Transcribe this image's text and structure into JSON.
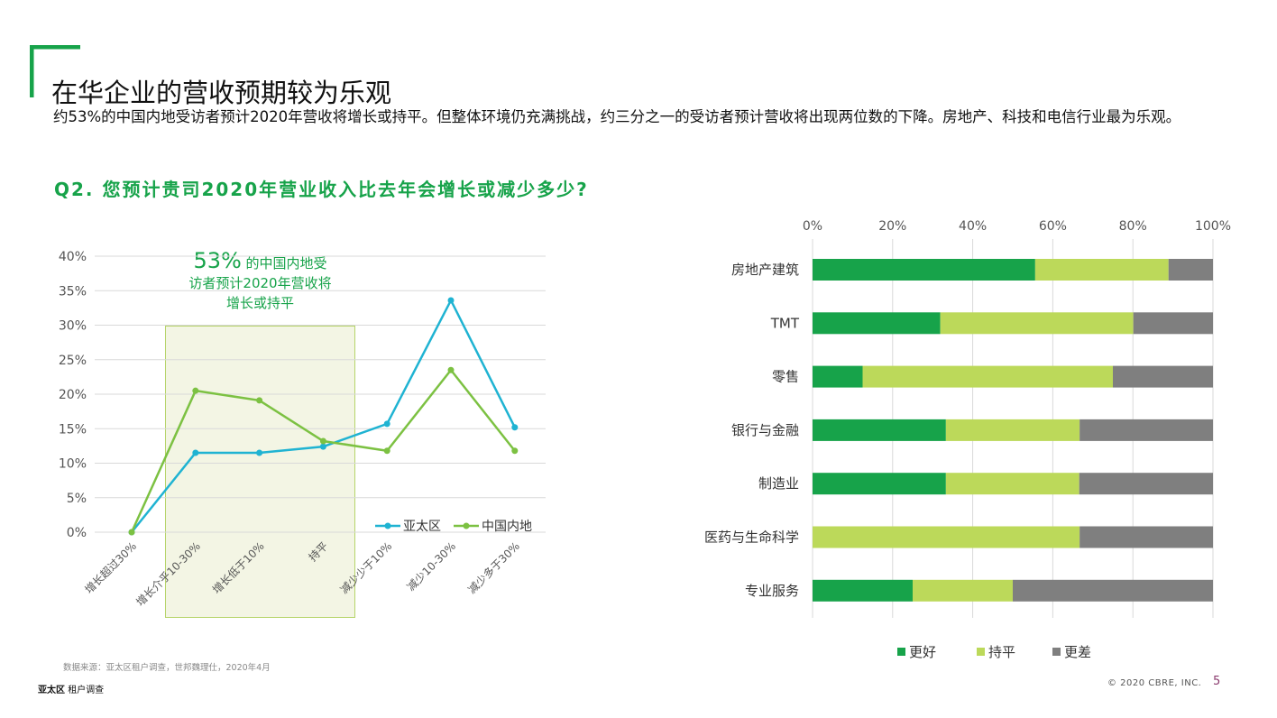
{
  "title": "在华企业的营收预期较为乐观",
  "subtitle": "约53%的中国内地受访者预计2020年营收将增长或持平。但整体环境仍充满挑战，约三分之一的受访者预计营收将出现两位数的下降。房地产、科技和电信行业最为乐观。",
  "question": "Q2. 您预计贵司2020年营业收入比去年会增长或减少多少?",
  "callout": {
    "big": "53%",
    "line1": " 的中国内地受",
    "line2": "访者预计2020年营收将",
    "line3": "增长或持平"
  },
  "source": "数据来源：亚太区租户调查，世邦魏理仕，2020年4月",
  "footer": {
    "brand": "亚太区",
    "report": "租户调查"
  },
  "copyright": "© 2020 CBRE, INC.",
  "page_number": "5",
  "colors": {
    "asia": "#1fb3d2",
    "china": "#7cc142",
    "better": "#17a34a",
    "flat": "#bcd95a",
    "worse": "#7f7f7f",
    "accent": "#17a34a"
  },
  "chart_data": [
    {
      "type": "line",
      "categories": [
        "增长超过30%",
        "增长介乎10-30%",
        "增长低于10%",
        "持平",
        "减少少于10%",
        "减少10-30%",
        "减少多于30%"
      ],
      "y_ticks": [
        "0%",
        "5%",
        "10%",
        "15%",
        "20%",
        "25%",
        "30%",
        "35%",
        "40%"
      ],
      "ylim": [
        0,
        40
      ],
      "series": [
        {
          "name": "亚太区",
          "values": [
            0,
            11.5,
            11.5,
            12.4,
            15.7,
            33.6,
            15.2
          ]
        },
        {
          "name": "中国内地",
          "values": [
            0,
            20.5,
            19.1,
            13.2,
            11.8,
            23.5,
            11.8
          ]
        }
      ],
      "legend": "bottom-right",
      "grid": true
    },
    {
      "type": "bar",
      "orientation": "horizontal",
      "stacked": true,
      "categories": [
        "房地产建筑",
        "TMT",
        "零售",
        "银行与金融",
        "制造业",
        "医药与生命科学",
        "专业服务"
      ],
      "x_ticks": [
        "0%",
        "20%",
        "40%",
        "60%",
        "80%",
        "100%"
      ],
      "xlim": [
        0,
        100
      ],
      "series": [
        {
          "name": "更好",
          "values": [
            55.6,
            31.9,
            12.5,
            33.3,
            33.3,
            0,
            25.0
          ]
        },
        {
          "name": "持平",
          "values": [
            33.3,
            48.2,
            62.5,
            33.4,
            33.3,
            66.7,
            25.0
          ]
        },
        {
          "name": "更差",
          "values": [
            11.1,
            19.9,
            25.0,
            33.3,
            33.4,
            33.3,
            50.0
          ]
        }
      ],
      "legend": "bottom",
      "grid": true
    }
  ]
}
